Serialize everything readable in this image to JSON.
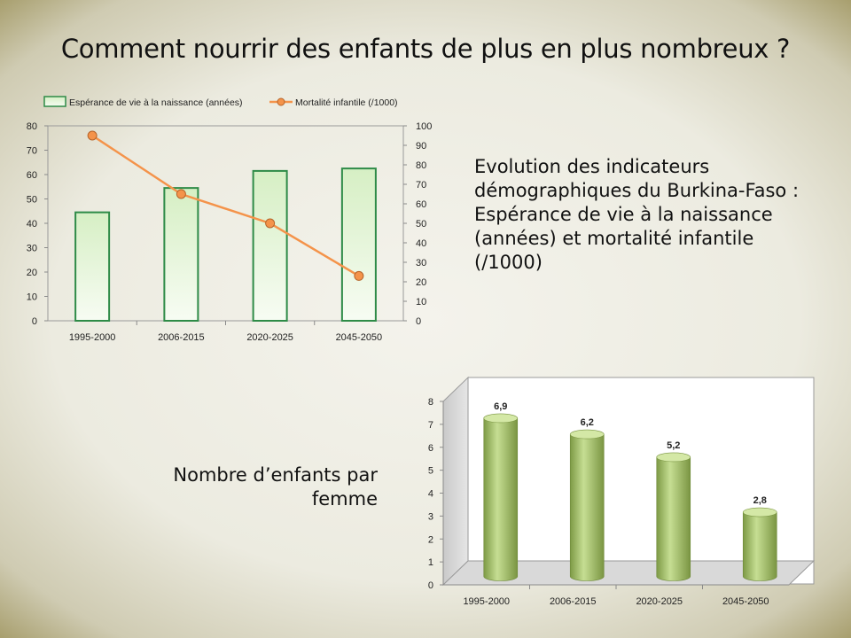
{
  "slide": {
    "title": "Comment nourrir des enfants de plus en plus nombreux ?",
    "description": "Evolution des indicateurs démographiques du Burkina-Faso : Espérance de vie à la naissance (années) et mortalité infantile (/1000)",
    "secondary_caption": "Nombre d’enfants par femme"
  },
  "chart_data": [
    {
      "type": "bar",
      "combo": "bar + line (secondary axis)",
      "categories": [
        "1995-2000",
        "2006-2015",
        "2020-2025",
        "2045-2050"
      ],
      "series": [
        {
          "name": "Espérance de vie à la naissance (années)",
          "type": "bar",
          "axis": "left",
          "values": [
            44.5,
            54.5,
            61.5,
            62.5
          ],
          "color": "#2e8b47"
        },
        {
          "name": "Mortalité infantile (/1000)",
          "type": "line",
          "axis": "right",
          "values": [
            95,
            65,
            50,
            23
          ],
          "color": "#f4934a"
        }
      ],
      "y_left": {
        "min": 0,
        "max": 80,
        "ticks": [
          "0",
          "10",
          "20",
          "30",
          "40",
          "50",
          "60",
          "70",
          "80"
        ]
      },
      "y_right": {
        "min": 0,
        "max": 100,
        "ticks": [
          "0",
          "10",
          "20",
          "30",
          "40",
          "50",
          "60",
          "70",
          "80",
          "90",
          "100"
        ]
      },
      "legend": "top",
      "grid": false
    },
    {
      "type": "bar",
      "style": "3d-cylinder",
      "categories": [
        "1995-2000",
        "2006-2015",
        "2020-2025",
        "2045-2050"
      ],
      "values": [
        6.9,
        6.2,
        5.2,
        2.8
      ],
      "data_labels": [
        "6,9",
        "6,2",
        "5,2",
        "2,8"
      ],
      "y": {
        "min": 0,
        "max": 8,
        "ticks": [
          "0",
          "1",
          "2",
          "3",
          "4",
          "5",
          "6",
          "7",
          "8"
        ]
      },
      "bar_color": "#a9c86a",
      "grid": false
    }
  ]
}
